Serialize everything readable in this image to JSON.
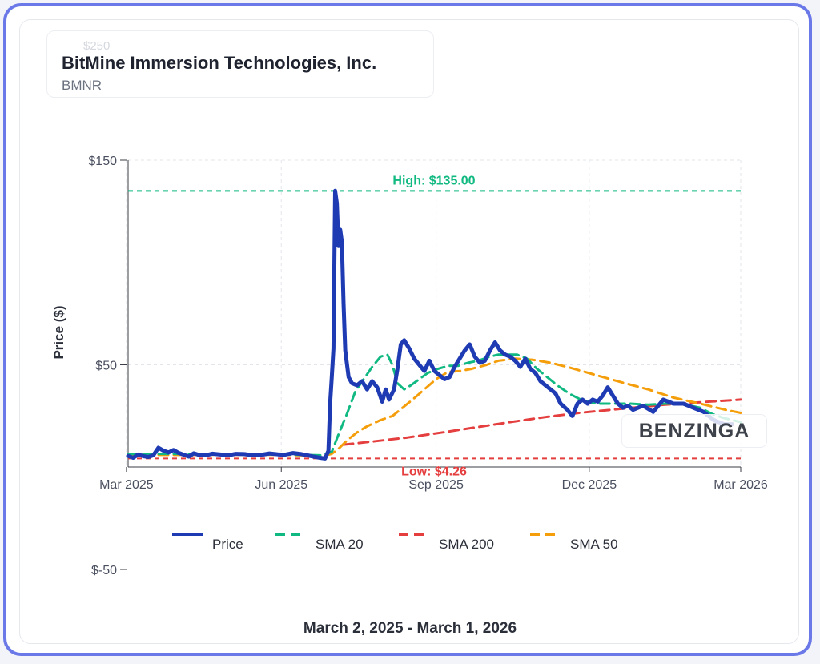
{
  "header": {
    "company_name": "BitMine Immersion Technologies, Inc.",
    "ticker": "BMNR"
  },
  "watermark": "BENZINGA",
  "date_range": "March 2, 2025 - March 1, 2026",
  "colors": {
    "price": "#1f3bb3",
    "sma20": "#10b981",
    "sma200": "#e53e3e",
    "sma50": "#f59e0b",
    "frame": "#6b79e8"
  },
  "chart_data": {
    "type": "line",
    "title": "",
    "xlabel": "",
    "ylabel": "Price ($)",
    "x_range": [
      "2025-03-02",
      "2026-03-01"
    ],
    "ylim": [
      -50,
      150
    ],
    "ytick_values": [
      -50,
      50,
      150
    ],
    "ytick_labels": [
      "$-50",
      "$50",
      "$150"
    ],
    "ghost_tick_label": "$250",
    "xtick_values": [
      "2025-03-01",
      "2025-06-01",
      "2025-09-01",
      "2025-12-01",
      "2026-03-01"
    ],
    "xtick_labels": [
      "Mar 2025",
      "Jun 2025",
      "Sep 2025",
      "Dec 2025",
      "Mar 2026"
    ],
    "grid": true,
    "legend_position": "bottom",
    "annotations": {
      "high": {
        "value": 135.0,
        "label": "High: $135.00"
      },
      "low": {
        "value": 4.26,
        "label": "Low: $4.26"
      }
    },
    "series": [
      {
        "name": "Price",
        "key": "price",
        "points": [
          [
            "2025-03-02",
            5.5
          ],
          [
            "2025-03-05",
            4.6
          ],
          [
            "2025-03-08",
            6.2
          ],
          [
            "2025-03-11",
            5.4
          ],
          [
            "2025-03-14",
            5.0
          ],
          [
            "2025-03-17",
            5.8
          ],
          [
            "2025-03-20",
            9.5
          ],
          [
            "2025-03-23",
            8.1
          ],
          [
            "2025-03-26",
            7.2
          ],
          [
            "2025-03-29",
            8.4
          ],
          [
            "2025-04-01",
            7.0
          ],
          [
            "2025-04-04",
            6.1
          ],
          [
            "2025-04-07",
            5.2
          ],
          [
            "2025-04-10",
            6.8
          ],
          [
            "2025-04-13",
            6.0
          ],
          [
            "2025-04-17",
            5.8
          ],
          [
            "2025-04-21",
            6.6
          ],
          [
            "2025-04-25",
            6.3
          ],
          [
            "2025-05-01",
            5.9
          ],
          [
            "2025-05-05",
            6.5
          ],
          [
            "2025-05-10",
            6.4
          ],
          [
            "2025-05-15",
            5.8
          ],
          [
            "2025-05-20",
            6.0
          ],
          [
            "2025-05-25",
            6.7
          ],
          [
            "2025-05-30",
            6.3
          ],
          [
            "2025-06-03",
            6.1
          ],
          [
            "2025-06-08",
            6.9
          ],
          [
            "2025-06-12",
            6.5
          ],
          [
            "2025-06-16",
            5.9
          ],
          [
            "2025-06-20",
            5.2
          ],
          [
            "2025-06-24",
            4.6
          ],
          [
            "2025-06-27",
            4.26
          ],
          [
            "2025-06-29",
            8.0
          ],
          [
            "2025-06-30",
            31.0
          ],
          [
            "2025-07-01",
            44.0
          ],
          [
            "2025-07-02",
            58.0
          ],
          [
            "2025-07-03",
            135.0
          ],
          [
            "2025-07-04",
            129.0
          ],
          [
            "2025-07-05",
            108.0
          ],
          [
            "2025-07-06",
            116.0
          ],
          [
            "2025-07-07",
            110.0
          ],
          [
            "2025-07-08",
            80.0
          ],
          [
            "2025-07-09",
            57.0
          ],
          [
            "2025-07-11",
            44.0
          ],
          [
            "2025-07-13",
            41.0
          ],
          [
            "2025-07-16",
            40.0
          ],
          [
            "2025-07-19",
            42.0
          ],
          [
            "2025-07-22",
            38.0
          ],
          [
            "2025-07-25",
            42.0
          ],
          [
            "2025-07-28",
            39.0
          ],
          [
            "2025-07-31",
            32.0
          ],
          [
            "2025-08-02",
            38.0
          ],
          [
            "2025-08-04",
            33.0
          ],
          [
            "2025-08-07",
            38.0
          ],
          [
            "2025-08-09",
            48.0
          ],
          [
            "2025-08-11",
            60.0
          ],
          [
            "2025-08-13",
            62.0
          ],
          [
            "2025-08-16",
            58.0
          ],
          [
            "2025-08-19",
            53.0
          ],
          [
            "2025-08-22",
            50.0
          ],
          [
            "2025-08-25",
            47.0
          ],
          [
            "2025-08-28",
            52.0
          ],
          [
            "2025-08-31",
            47.0
          ],
          [
            "2025-09-03",
            45.0
          ],
          [
            "2025-09-06",
            43.0
          ],
          [
            "2025-09-09",
            44.0
          ],
          [
            "2025-09-12",
            49.0
          ],
          [
            "2025-09-15",
            53.0
          ],
          [
            "2025-09-18",
            57.0
          ],
          [
            "2025-09-21",
            60.0
          ],
          [
            "2025-09-24",
            54.0
          ],
          [
            "2025-09-27",
            51.0
          ],
          [
            "2025-09-30",
            52.0
          ],
          [
            "2025-10-03",
            57.0
          ],
          [
            "2025-10-06",
            61.0
          ],
          [
            "2025-10-09",
            57.0
          ],
          [
            "2025-10-12",
            55.0
          ],
          [
            "2025-10-15",
            54.0
          ],
          [
            "2025-10-18",
            52.0
          ],
          [
            "2025-10-21",
            49.0
          ],
          [
            "2025-10-24",
            53.0
          ],
          [
            "2025-10-27",
            48.0
          ],
          [
            "2025-10-30",
            46.0
          ],
          [
            "2025-11-02",
            42.0
          ],
          [
            "2025-11-05",
            40.0
          ],
          [
            "2025-11-08",
            38.0
          ],
          [
            "2025-11-11",
            36.0
          ],
          [
            "2025-11-14",
            31.0
          ],
          [
            "2025-11-18",
            28.0
          ],
          [
            "2025-11-21",
            25.0
          ],
          [
            "2025-11-24",
            31.0
          ],
          [
            "2025-11-27",
            33.0
          ],
          [
            "2025-11-30",
            31.0
          ],
          [
            "2025-12-03",
            33.0
          ],
          [
            "2025-12-06",
            32.0
          ],
          [
            "2025-12-09",
            35.0
          ],
          [
            "2025-12-12",
            39.0
          ],
          [
            "2025-12-15",
            35.0
          ],
          [
            "2025-12-18",
            31.0
          ],
          [
            "2025-12-21",
            29.0
          ],
          [
            "2025-12-24",
            30.0
          ],
          [
            "2025-12-27",
            28.0
          ],
          [
            "2026-01-02",
            30.0
          ],
          [
            "2026-01-08",
            27.0
          ],
          [
            "2026-01-14",
            33.0
          ],
          [
            "2026-01-20",
            31.0
          ],
          [
            "2026-01-26",
            31.0
          ],
          [
            "2026-02-01",
            29.0
          ],
          [
            "2026-02-07",
            27.0
          ],
          [
            "2026-02-13",
            23.0
          ],
          [
            "2026-02-19",
            21.0
          ],
          [
            "2026-02-24",
            21.0
          ]
        ]
      },
      {
        "name": "SMA 20",
        "key": "sma20",
        "points": [
          [
            "2025-03-02",
            6.5
          ],
          [
            "2025-04-01",
            6.5
          ],
          [
            "2025-05-01",
            6.3
          ],
          [
            "2025-06-01",
            6.3
          ],
          [
            "2025-06-25",
            5.8
          ],
          [
            "2025-07-01",
            7.5
          ],
          [
            "2025-07-05",
            16.0
          ],
          [
            "2025-07-10",
            26.0
          ],
          [
            "2025-07-15",
            37.0
          ],
          [
            "2025-07-20",
            43.0
          ],
          [
            "2025-07-25",
            49.0
          ],
          [
            "2025-07-30",
            54.0
          ],
          [
            "2025-08-03",
            55.0
          ],
          [
            "2025-08-06",
            50.0
          ],
          [
            "2025-08-09",
            41.0
          ],
          [
            "2025-08-13",
            38.0
          ],
          [
            "2025-08-17",
            40.0
          ],
          [
            "2025-08-22",
            43.0
          ],
          [
            "2025-08-27",
            46.0
          ],
          [
            "2025-09-02",
            48.0
          ],
          [
            "2025-09-08",
            49.5
          ],
          [
            "2025-09-14",
            49.5
          ],
          [
            "2025-09-20",
            51.0
          ],
          [
            "2025-09-26",
            52.0
          ],
          [
            "2025-10-03",
            54.0
          ],
          [
            "2025-10-08",
            55.0
          ],
          [
            "2025-10-14",
            55.0
          ],
          [
            "2025-10-19",
            55.0
          ],
          [
            "2025-10-25",
            53.0
          ],
          [
            "2025-10-31",
            48.0
          ],
          [
            "2025-11-06",
            44.0
          ],
          [
            "2025-11-12",
            40.0
          ],
          [
            "2025-11-19",
            36.0
          ],
          [
            "2025-11-26",
            33.0
          ],
          [
            "2025-12-05",
            31.0
          ],
          [
            "2025-12-15",
            31.0
          ],
          [
            "2025-12-25",
            31.0
          ],
          [
            "2026-01-05",
            30.5
          ],
          [
            "2026-01-15",
            31.0
          ],
          [
            "2026-01-25",
            31.0
          ],
          [
            "2026-02-05",
            29.0
          ],
          [
            "2026-02-12",
            26.0
          ],
          [
            "2026-02-19",
            24.0
          ],
          [
            "2026-03-01",
            22.0
          ]
        ]
      },
      {
        "name": "SMA 200",
        "key": "sma200",
        "points": [
          [
            "2025-07-08",
            11.0
          ],
          [
            "2025-07-25",
            12.5
          ],
          [
            "2025-08-15",
            14.5
          ],
          [
            "2025-09-05",
            17.0
          ],
          [
            "2025-09-25",
            19.5
          ],
          [
            "2025-10-15",
            22.0
          ],
          [
            "2025-11-05",
            24.5
          ],
          [
            "2025-11-25",
            26.5
          ],
          [
            "2025-12-20",
            28.5
          ],
          [
            "2026-01-15",
            30.5
          ],
          [
            "2026-02-10",
            32.0
          ],
          [
            "2026-03-01",
            33.0
          ]
        ]
      },
      {
        "name": "SMA 50",
        "key": "sma50",
        "points": [
          [
            "2025-03-02",
            6.0
          ],
          [
            "2025-04-01",
            6.0
          ],
          [
            "2025-05-01",
            6.1
          ],
          [
            "2025-06-01",
            6.1
          ],
          [
            "2025-06-26",
            5.5
          ],
          [
            "2025-07-01",
            6.5
          ],
          [
            "2025-07-05",
            9.0
          ],
          [
            "2025-07-10",
            13.0
          ],
          [
            "2025-07-16",
            17.0
          ],
          [
            "2025-07-22",
            20.0
          ],
          [
            "2025-07-30",
            23.0
          ],
          [
            "2025-08-06",
            25.0
          ],
          [
            "2025-08-12",
            29.0
          ],
          [
            "2025-08-18",
            33.0
          ],
          [
            "2025-08-25",
            38.0
          ],
          [
            "2025-09-01",
            43.0
          ],
          [
            "2025-09-08",
            46.5
          ],
          [
            "2025-09-15",
            47.0
          ],
          [
            "2025-09-22",
            48.0
          ],
          [
            "2025-10-01",
            50.0
          ],
          [
            "2025-10-08",
            52.0
          ],
          [
            "2025-10-18",
            53.0
          ],
          [
            "2025-10-28",
            52.5
          ],
          [
            "2025-11-08",
            51.0
          ],
          [
            "2025-11-20",
            48.5
          ],
          [
            "2025-12-05",
            45.0
          ],
          [
            "2025-12-20",
            41.5
          ],
          [
            "2026-01-05",
            38.0
          ],
          [
            "2026-01-20",
            34.0
          ],
          [
            "2026-02-05",
            31.0
          ],
          [
            "2026-02-20",
            28.0
          ],
          [
            "2026-03-01",
            26.5
          ]
        ]
      }
    ]
  }
}
